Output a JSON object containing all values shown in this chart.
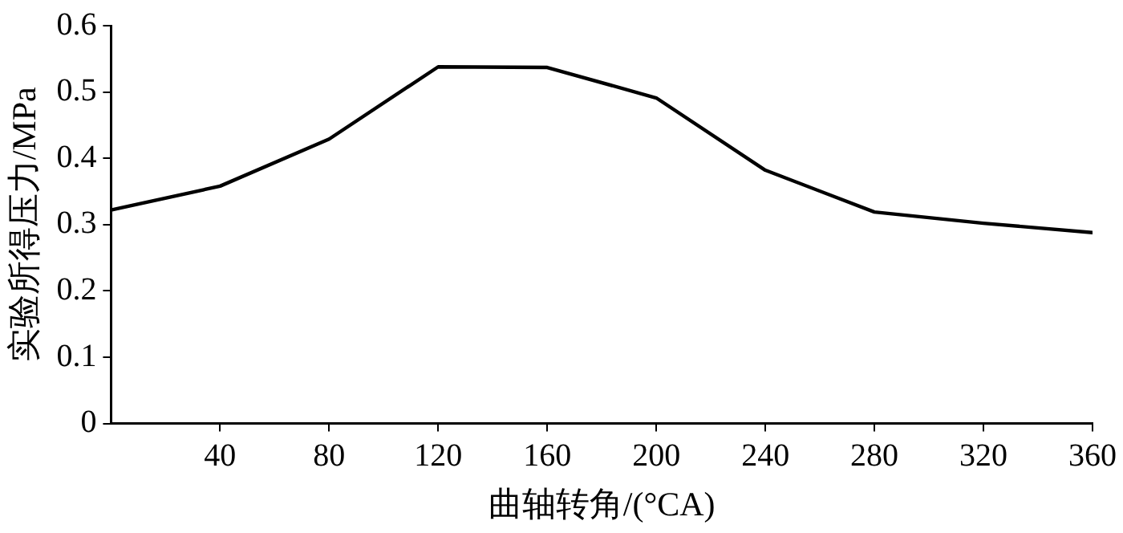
{
  "chart_data": {
    "type": "line",
    "xlabel": "曲轴转角/(°CA)",
    "ylabel": "实验所得压力/MPa",
    "x": [
      0,
      40,
      80,
      120,
      160,
      200,
      240,
      280,
      320,
      360
    ],
    "series": [
      {
        "color": "#000000",
        "values": [
          0.322,
          0.358,
          0.429,
          0.538,
          0.537,
          0.491,
          0.382,
          0.319,
          0.302,
          0.288
        ]
      }
    ],
    "xlim": [
      0,
      360
    ],
    "xticks": [
      40,
      80,
      120,
      160,
      200,
      240,
      280,
      320,
      360
    ],
    "ylim": [
      0,
      0.6
    ],
    "yticks": [
      0,
      0.1,
      0.2,
      0.3,
      0.4,
      0.5,
      0.6
    ],
    "grid": false,
    "legend": false,
    "marker": "none",
    "line_style": "solid"
  }
}
